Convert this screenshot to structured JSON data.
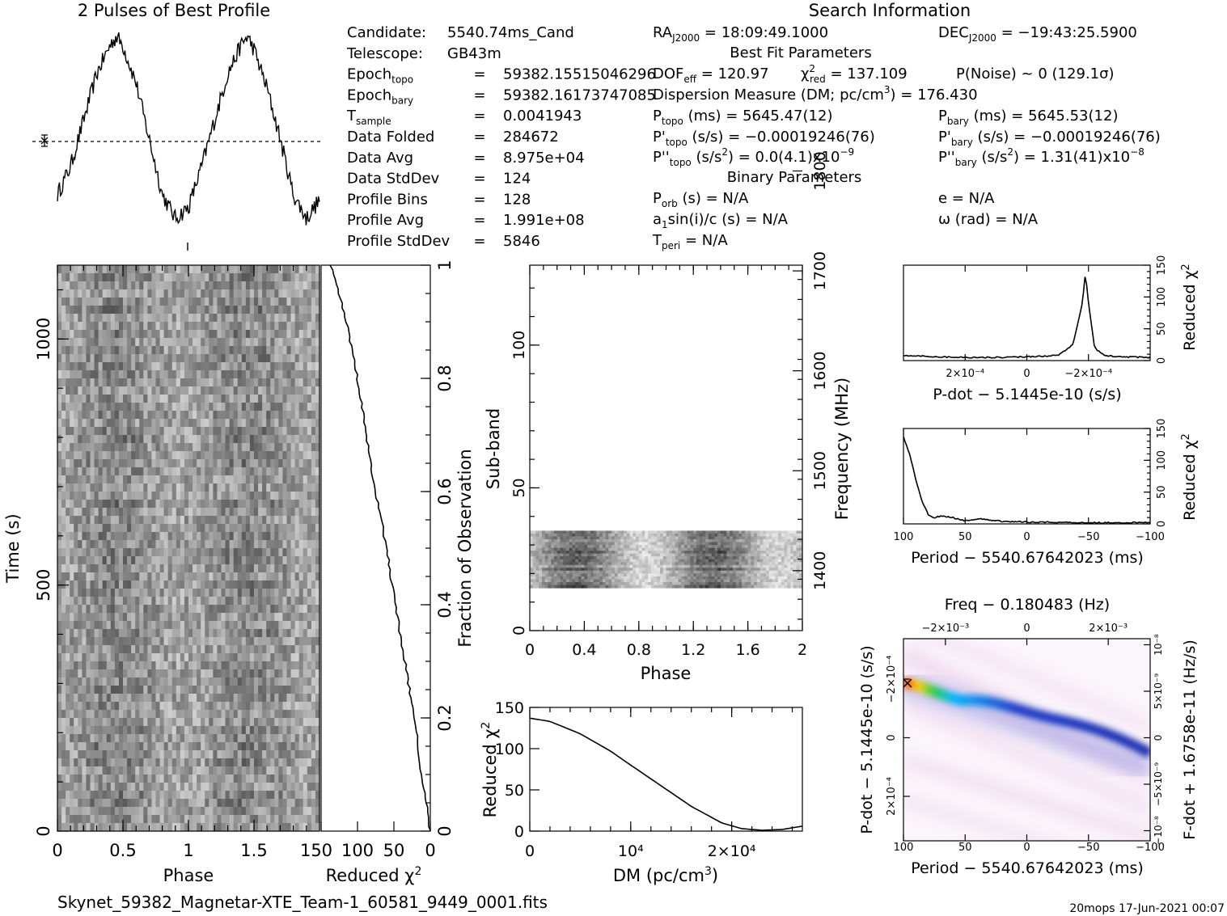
{
  "titles": {
    "profile": "2 Pulses of Best Profile",
    "search": "Search Information",
    "best_fit": "Best Fit Parameters",
    "binary": "Binary Parameters"
  },
  "info_left": [
    {
      "label": "Candidate:",
      "eq": "",
      "value": "5540.74ms_Cand"
    },
    {
      "label": "Telescope:",
      "eq": "",
      "value": "GB43m"
    },
    {
      "label": "Epoch",
      "sub": "topo",
      "eq": "=",
      "value": "59382.15515046296"
    },
    {
      "label": "Epoch",
      "sub": "bary",
      "eq": "=",
      "value": "59382.16173747085"
    },
    {
      "label": "T",
      "sub": "sample",
      "eq": "=",
      "value": "0.0041943"
    },
    {
      "label": "Data Folded",
      "eq": "=",
      "value": "284672"
    },
    {
      "label": "Data Avg",
      "eq": "=",
      "value": "8.975e+04"
    },
    {
      "label": "Data StdDev",
      "eq": "=",
      "value": "124"
    },
    {
      "label": "Profile Bins",
      "eq": "=",
      "value": "128"
    },
    {
      "label": "Profile Avg",
      "eq": "=",
      "value": "1.991e+08"
    },
    {
      "label": "Profile StdDev",
      "eq": "=",
      "value": "5846"
    }
  ],
  "info_right": {
    "ra": "RA_J2000 = 18:09:49.1000",
    "dec": "DEC_J2000 = −19:43:25.5900",
    "dof": "DOF_eff = 120.97",
    "chi2": "χ²_red = 137.109",
    "pnoise": "P(Noise) ~ 0 (129.1σ)",
    "dm": "Dispersion Measure (DM; pc/cm³) = 176.430",
    "ptopo": "P_topo (ms) = 5645.47(12)",
    "pbary": "P_bary (ms) = 5645.53(12)",
    "pdtopo": "P'_topo (s/s) = −0.00019246(76)",
    "pdbary": "P'_bary (s/s) = −0.00019246(76)",
    "pddtopo": "P''_topo (s/s²) = 0.0(4.1)x10⁻⁹",
    "pddbary": "P''_bary (s/s²) = 1.31(41)x10⁻⁸",
    "porb": "P_orb (s) = N/A",
    "ecc": "e = N/A",
    "asini": "a₁sin(i)/c (s) = N/A",
    "omega": "ω (rad) = N/A",
    "tperi": "T_peri = N/A"
  },
  "axis_labels": {
    "time": "Time (s)",
    "phase": "Phase",
    "reduced_chi2": "Reduced χ²",
    "fraction": "Fraction of Observation",
    "subband": "Sub-band",
    "frequency": "Frequency (MHz)",
    "dm_axis": "DM (pc/cm³)",
    "pdot": "P-dot − 5.1445e-10 (s/s)",
    "period": "Period − 5540.67642023 (ms)",
    "freq": "Freq − 0.180483 (Hz)",
    "fdot": "F-dot + 1.6758e-11 (Hz/s)"
  },
  "footer": {
    "filename": "Skynet_59382_Magnetar-XTE_Team-1_60581_9449_0001.fits",
    "stamp": "20mops 17-Jun-2021 00:07"
  },
  "chart_data": [
    {
      "id": "profile",
      "type": "line",
      "title": "2 Pulses of Best Profile",
      "xlabel": "Phase",
      "xlim": [
        0,
        2
      ],
      "description_of_curve": "two sinusoid-like pulses, peaks near phase 0.45 and 1.45, minima near 0.9 and 1.9",
      "x": [
        0.0,
        0.1,
        0.2,
        0.3,
        0.4,
        0.45,
        0.5,
        0.6,
        0.7,
        0.8,
        0.9,
        1.0,
        1.1,
        1.2,
        1.3,
        1.4,
        1.45,
        1.5,
        1.6,
        1.7,
        1.8,
        1.9,
        2.0
      ],
      "y": [
        0.15,
        0.3,
        0.55,
        0.8,
        0.95,
        1.0,
        0.95,
        0.75,
        0.45,
        0.15,
        0.02,
        0.08,
        0.3,
        0.55,
        0.8,
        0.95,
        1.0,
        0.93,
        0.72,
        0.45,
        0.15,
        0.02,
        0.12
      ]
    },
    {
      "id": "time_phase",
      "type": "heatmap",
      "xlabel": "Phase",
      "ylabel": "Time (s)",
      "xlim": [
        0,
        2
      ],
      "ylim": [
        0,
        1150
      ],
      "x_ticks": [
        "0",
        "0.5",
        "1",
        "1.5"
      ],
      "y_ticks": [
        "0",
        "500",
        "1000"
      ],
      "colormap": "grayscale"
    },
    {
      "id": "chi2_vs_fraction",
      "type": "line",
      "xlabel": "Reduced χ²",
      "ylabel": "Fraction of Observation",
      "xlim": [
        150,
        0
      ],
      "ylim": [
        0,
        1
      ],
      "x_ticks": [
        "150",
        "100",
        "50",
        "0"
      ],
      "y_ticks": [
        "0",
        "0.2",
        "0.4",
        "0.6",
        "0.8",
        "1"
      ],
      "fraction": [
        0.0,
        0.05,
        0.1,
        0.2,
        0.3,
        0.4,
        0.5,
        0.6,
        0.7,
        0.8,
        0.9,
        0.95,
        1.0
      ],
      "chi2": [
        0,
        5,
        12,
        22,
        35,
        48,
        60,
        75,
        88,
        100,
        115,
        125,
        137
      ]
    },
    {
      "id": "subband_phase",
      "type": "heatmap",
      "xlabel": "Phase",
      "ylabel": "Sub-band",
      "right_label": "Frequency (MHz)",
      "xlim": [
        0,
        2
      ],
      "ylim": [
        0,
        128
      ],
      "x_ticks": [
        "0",
        "0.4",
        "0.8",
        "1.2",
        "1.6",
        "2"
      ],
      "y_ticks": [
        "0",
        "50",
        "100"
      ],
      "freq_ticks": [
        "1400",
        "1500",
        "1600",
        "1700",
        "1800"
      ],
      "active_subbands": [
        15,
        35
      ],
      "colormap": "grayscale"
    },
    {
      "id": "dm_chi2",
      "type": "line",
      "xlabel": "DM (pc/cm³)",
      "ylabel": "Reduced χ²",
      "xlim": [
        0,
        27000
      ],
      "ylim": [
        0,
        150
      ],
      "x_ticks": [
        "0",
        "10⁴",
        "2×10⁴"
      ],
      "y_ticks": [
        "0",
        "50",
        "100",
        "150"
      ],
      "x": [
        0,
        2000,
        5000,
        8000,
        10000,
        13000,
        16000,
        19000,
        21000,
        23000,
        25000,
        27000
      ],
      "y": [
        137,
        133,
        118,
        97,
        80,
        55,
        30,
        10,
        3,
        1,
        2,
        6
      ]
    },
    {
      "id": "pdot_chi2",
      "type": "line",
      "xlabel": "P-dot − 5.1445e-10 (s/s)",
      "ylabel": "Reduced χ²",
      "xlim": [
        0.0004,
        -0.0004
      ],
      "ylim": [
        0,
        150
      ],
      "x_ticks": [
        "2×10⁻⁴",
        "0",
        "−2×10⁻⁴"
      ],
      "y_ticks": [
        "0",
        "50",
        "100",
        "150"
      ],
      "x": [
        0.0004,
        0.0003,
        0.0002,
        0.0001,
        0.0,
        -0.0001,
        -0.00015,
        -0.00018,
        -0.00019,
        -0.0002,
        -0.00022,
        -0.00025,
        -0.0003,
        -0.0004
      ],
      "y": [
        8,
        6,
        5,
        5,
        6,
        8,
        25,
        90,
        137,
        90,
        20,
        8,
        6,
        5
      ]
    },
    {
      "id": "period_chi2",
      "type": "line",
      "xlabel": "Period − 5540.67642023 (ms)",
      "ylabel": "Reduced χ²",
      "xlim": [
        100,
        -100
      ],
      "ylim": [
        0,
        150
      ],
      "x_ticks": [
        "100",
        "50",
        "0",
        "−50",
        "−100"
      ],
      "y_ticks": [
        "0",
        "50",
        "100",
        "150"
      ],
      "x": [
        100,
        95,
        90,
        85,
        80,
        75,
        70,
        60,
        50,
        40,
        20,
        0,
        -50,
        -100
      ],
      "y": [
        137,
        110,
        70,
        35,
        15,
        10,
        12,
        10,
        5,
        8,
        4,
        3,
        2,
        2
      ]
    },
    {
      "id": "period_pdot",
      "type": "heatmap",
      "xlabel": "Period − 5540.67642023 (ms)",
      "ylabel": "P-dot − 5.1445e-10 (s/s)",
      "top_label": "Freq − 0.180483 (Hz)",
      "right_label": "F-dot + 1.6758e-11 (Hz/s)",
      "x_ticks": [
        "100",
        "50",
        "0",
        "−50",
        "−100"
      ],
      "top_ticks": [
        "−2×10⁻³",
        "0",
        "2×10⁻³"
      ],
      "y_ticks": [
        "−2×10⁻⁴",
        "0",
        "2×10⁻⁴"
      ],
      "right_ticks": [
        "10⁻⁸",
        "5×10⁻⁹",
        "0",
        "−5×10⁻⁹",
        "−10⁻⁸"
      ],
      "colormap": "white-pink-blue-green-red"
    }
  ]
}
